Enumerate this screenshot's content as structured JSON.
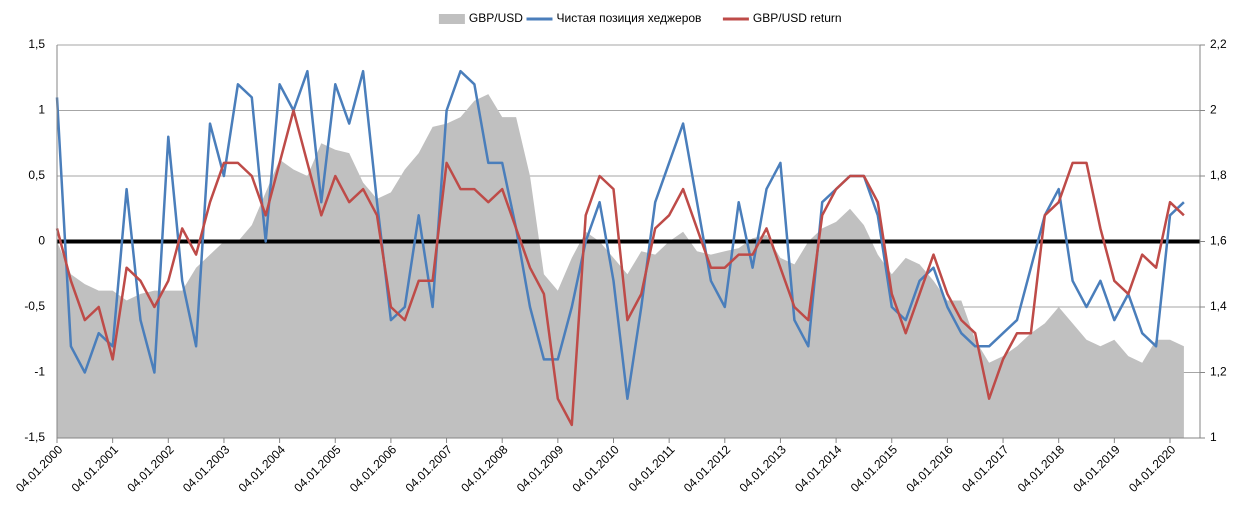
{
  "chart_data": {
    "type": "line",
    "categories": [
      "04.01.2000",
      null,
      null,
      null,
      "04.01.2001",
      null,
      null,
      null,
      "04.01.2002",
      null,
      null,
      null,
      "04.01.2003",
      null,
      null,
      null,
      "04.01.2004",
      null,
      null,
      null,
      "04.01.2005",
      null,
      null,
      null,
      "04.01.2006",
      null,
      null,
      null,
      "04.01.2007",
      null,
      null,
      null,
      "04.01.2008",
      null,
      null,
      null,
      "04.01.2009",
      null,
      null,
      null,
      "04.01.2010",
      null,
      null,
      null,
      "04.01.2011",
      null,
      null,
      null,
      "04.01.2012",
      null,
      null,
      null,
      "04.01.2013",
      null,
      null,
      null,
      "04.01.2014",
      null,
      null,
      null,
      "04.01.2015",
      null,
      null,
      null,
      "04.01.2016",
      null,
      null,
      null,
      "04.01.2017",
      null,
      null,
      null,
      "04.01.2018",
      null,
      null,
      null,
      "04.01.2019",
      null,
      null,
      null,
      "04.01.2020",
      null
    ],
    "series": [
      {
        "name": "GBP/USD",
        "type": "area",
        "axis": "y2",
        "color": "#c0c0c0",
        "values": [
          1.6,
          1.5,
          1.47,
          1.45,
          1.45,
          1.42,
          1.44,
          1.45,
          1.45,
          1.45,
          1.52,
          1.56,
          1.6,
          1.6,
          1.65,
          1.75,
          1.85,
          1.82,
          1.8,
          1.9,
          1.88,
          1.87,
          1.78,
          1.73,
          1.75,
          1.82,
          1.87,
          1.95,
          1.96,
          1.98,
          2.03,
          2.05,
          1.98,
          1.98,
          1.8,
          1.5,
          1.45,
          1.55,
          1.63,
          1.6,
          1.55,
          1.5,
          1.57,
          1.56,
          1.6,
          1.63,
          1.57,
          1.56,
          1.57,
          1.58,
          1.61,
          1.62,
          1.55,
          1.53,
          1.6,
          1.64,
          1.66,
          1.7,
          1.65,
          1.56,
          1.5,
          1.55,
          1.53,
          1.48,
          1.42,
          1.42,
          1.3,
          1.23,
          1.25,
          1.28,
          1.32,
          1.35,
          1.4,
          1.35,
          1.3,
          1.28,
          1.3,
          1.25,
          1.23,
          1.3,
          1.3,
          1.28
        ]
      },
      {
        "name": "Чистая позиция хеджеров",
        "type": "line",
        "color": "#4a7ebb",
        "values": [
          1.1,
          -0.8,
          -1.0,
          -0.7,
          -0.8,
          0.4,
          -0.6,
          -1.0,
          0.8,
          -0.3,
          -0.8,
          0.9,
          0.5,
          1.2,
          1.1,
          0.0,
          1.2,
          1.0,
          1.3,
          0.3,
          1.2,
          0.9,
          1.3,
          0.3,
          -0.6,
          -0.5,
          0.2,
          -0.5,
          1.0,
          1.3,
          1.2,
          0.6,
          0.6,
          0.1,
          -0.5,
          -0.9,
          -0.9,
          -0.5,
          0.0,
          0.3,
          -0.3,
          -1.2,
          -0.5,
          0.3,
          0.6,
          0.9,
          0.3,
          -0.3,
          -0.5,
          0.3,
          -0.2,
          0.4,
          0.6,
          -0.6,
          -0.8,
          0.3,
          0.4,
          0.5,
          0.5,
          0.2,
          -0.5,
          -0.6,
          -0.3,
          -0.2,
          -0.5,
          -0.7,
          -0.8,
          -0.8,
          -0.7,
          -0.6,
          -0.2,
          0.2,
          0.4,
          -0.3,
          -0.5,
          -0.3,
          -0.6,
          -0.4,
          -0.7,
          -0.8,
          0.2,
          0.3
        ]
      },
      {
        "name": "GBP/USD return",
        "type": "line",
        "color": "#be4b48",
        "values": [
          0.1,
          -0.3,
          -0.6,
          -0.5,
          -0.9,
          -0.2,
          -0.3,
          -0.5,
          -0.3,
          0.1,
          -0.1,
          0.3,
          0.6,
          0.6,
          0.5,
          0.2,
          0.6,
          1.0,
          0.6,
          0.2,
          0.5,
          0.3,
          0.4,
          0.2,
          -0.5,
          -0.6,
          -0.3,
          -0.3,
          0.6,
          0.4,
          0.4,
          0.3,
          0.4,
          0.1,
          -0.2,
          -0.4,
          -1.2,
          -1.4,
          0.2,
          0.5,
          0.4,
          -0.6,
          -0.4,
          0.1,
          0.2,
          0.4,
          0.1,
          -0.2,
          -0.2,
          -0.1,
          -0.1,
          0.1,
          -0.2,
          -0.5,
          -0.6,
          0.2,
          0.4,
          0.5,
          0.5,
          0.3,
          -0.4,
          -0.7,
          -0.4,
          -0.1,
          -0.4,
          -0.6,
          -0.7,
          -1.2,
          -0.9,
          -0.7,
          -0.7,
          0.2,
          0.3,
          0.6,
          0.6,
          0.1,
          -0.3,
          -0.4,
          -0.1,
          -0.2,
          0.3,
          0.2
        ]
      }
    ],
    "ylim": [
      -1.5,
      1.5
    ],
    "yticks": [
      {
        "value": 1.5,
        "label": "1,5"
      },
      1,
      {
        "value": 0.5,
        "label": "0,5"
      },
      0,
      {
        "value": -0.5,
        "label": "-0,5"
      },
      -1,
      {
        "value": -1.5,
        "label": "-1,5"
      }
    ],
    "y2lim": [
      1,
      2.2
    ],
    "y2ticks": [
      {
        "value": 2.2,
        "label": "2,2"
      },
      2,
      {
        "value": 1.8,
        "label": "1,8"
      },
      {
        "value": 1.6,
        "label": "1,6"
      },
      {
        "value": 1.4,
        "label": "1,4"
      },
      {
        "value": 1.2,
        "label": "1,2"
      },
      1
    ],
    "grid": true,
    "legend": "top"
  }
}
